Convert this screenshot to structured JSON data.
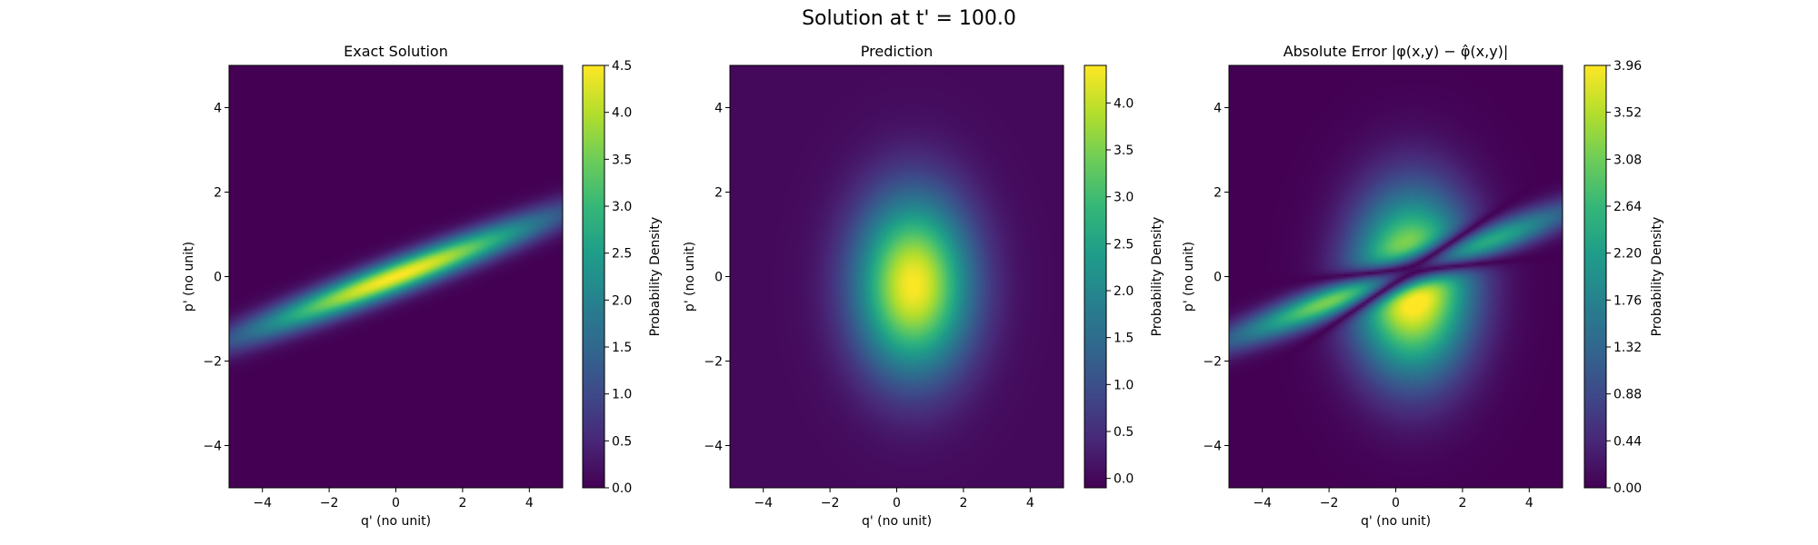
{
  "figure": {
    "suptitle": "Solution at t' = 100.0"
  },
  "colors": {
    "viridis_low": "#440154",
    "viridis_mid": "#21918c",
    "viridis_high": "#fde725"
  },
  "chart_data": [
    {
      "type": "heatmap",
      "title": "Exact Solution",
      "xlabel": "q' (no unit)",
      "ylabel": "p' (no unit)",
      "xlim": [
        -5,
        5
      ],
      "ylim": [
        -5,
        5
      ],
      "xticks": [
        -4,
        -2,
        0,
        2,
        4
      ],
      "yticks": [
        -4,
        -2,
        0,
        2,
        4
      ],
      "colorbar": {
        "label": "Probability Density",
        "range": [
          0.0,
          4.5
        ],
        "ticks": [
          "0.0",
          "0.5",
          "1.0",
          "1.5",
          "2.0",
          "2.5",
          "3.0",
          "3.5",
          "4.0",
          "4.5"
        ]
      },
      "field": {
        "kind": "tilted-gaussian",
        "peak": 4.5,
        "center": [
          0.0,
          0.0
        ],
        "slope": 0.3,
        "sigma_along": 3.2,
        "sigma_across": 0.28
      }
    },
    {
      "type": "heatmap",
      "title": "Prediction",
      "xlabel": "q' (no unit)",
      "ylabel": "p' (no unit)",
      "xlim": [
        -5,
        5
      ],
      "ylim": [
        -5,
        5
      ],
      "xticks": [
        -4,
        -2,
        0,
        2,
        4
      ],
      "yticks": [
        -4,
        -2,
        0,
        2,
        4
      ],
      "colorbar": {
        "label": "Probability Density",
        "range": [
          -0.1,
          4.4
        ],
        "ticks": [
          "0.0",
          "0.5",
          "1.0",
          "1.5",
          "2.0",
          "2.5",
          "3.0",
          "3.5",
          "4.0"
        ]
      },
      "field": {
        "kind": "gaussian",
        "peak": 4.4,
        "center": [
          0.5,
          -0.2
        ],
        "sigma_q": 1.2,
        "sigma_p": 1.45
      }
    },
    {
      "type": "heatmap",
      "title": "Absolute Error |φ(x,y) − φ̂(x,y)|",
      "xlabel": "q' (no unit)",
      "ylabel": "p' (no unit)",
      "xlim": [
        -5,
        5
      ],
      "ylim": [
        -5,
        5
      ],
      "xticks": [
        -4,
        -2,
        0,
        2,
        4
      ],
      "yticks": [
        -4,
        -2,
        0,
        2,
        4
      ],
      "colorbar": {
        "label": "Probability Density",
        "range": [
          0.0,
          3.96
        ],
        "ticks": [
          "0.00",
          "0.44",
          "0.88",
          "1.32",
          "1.76",
          "2.20",
          "2.64",
          "3.08",
          "3.52",
          "3.96"
        ]
      },
      "field": {
        "kind": "absolute-difference",
        "of": [
          "Exact Solution",
          "Prediction"
        ]
      }
    }
  ]
}
